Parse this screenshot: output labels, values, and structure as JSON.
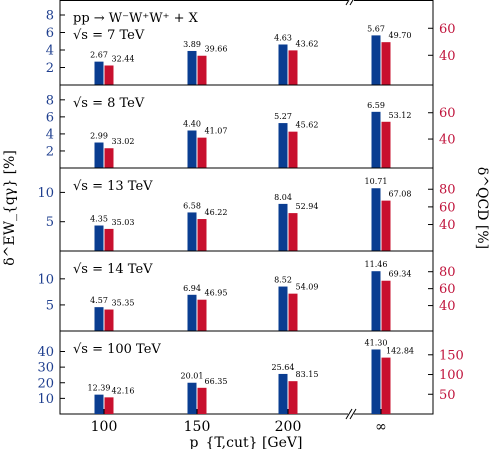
{
  "chart_data": {
    "type": "bar",
    "process": "pp → W⁻W⁺W⁺ + X",
    "categories": [
      "100",
      "150",
      "200",
      "∞"
    ],
    "xlabel": "p_{T,cut} [GeV]",
    "ylabel_left": "δ^EW_{qγ} [%]",
    "ylabel_right": "δ^QCD [%]",
    "panels": [
      {
        "label": "√s = 7 TeV",
        "ew": [
          2.67,
          3.89,
          4.63,
          5.67
        ],
        "qcd": [
          32.44,
          39.66,
          43.62,
          49.7
        ],
        "ew_ylim": [
          0,
          8.8
        ],
        "ew_ticks": [
          2,
          4,
          6,
          8
        ],
        "qcd_ylim": [
          18,
          75
        ],
        "qcd_ticks": [
          40,
          60
        ]
      },
      {
        "label": "√s = 8 TeV",
        "ew": [
          2.99,
          4.4,
          5.27,
          6.59
        ],
        "qcd": [
          33.02,
          41.07,
          45.62,
          53.12
        ],
        "ew_ylim": [
          0,
          8.8
        ],
        "ew_ticks": [
          2,
          4,
          6,
          8
        ],
        "qcd_ylim": [
          18,
          75
        ],
        "qcd_ticks": [
          40,
          60
        ]
      },
      {
        "label": "√s = 13 TeV",
        "ew": [
          4.35,
          6.58,
          8.04,
          10.71
        ],
        "qcd": [
          35.03,
          46.22,
          52.94,
          67.08
        ],
        "ew_ylim": [
          0,
          12.8
        ],
        "ew_ticks": [
          5,
          10
        ],
        "qcd_ylim": [
          10,
          95
        ],
        "qcd_ticks": [
          40,
          60,
          80
        ]
      },
      {
        "label": "√s = 14 TeV",
        "ew": [
          4.57,
          6.94,
          8.52,
          11.46
        ],
        "qcd": [
          35.35,
          46.95,
          54.09,
          69.34
        ],
        "ew_ylim": [
          0,
          13.8
        ],
        "ew_ticks": [
          5,
          10
        ],
        "qcd_ylim": [
          10,
          95
        ],
        "qcd_ticks": [
          40,
          60,
          80
        ]
      },
      {
        "label": "√s = 100 TeV",
        "ew": [
          12.39,
          20.01,
          25.64,
          41.3
        ],
        "qcd": [
          42.16,
          66.35,
          83.15,
          142.84
        ],
        "ew_ylim": [
          0,
          48
        ],
        "ew_ticks": [
          10,
          20,
          30,
          40
        ],
        "qcd_ylim": [
          0,
          190
        ],
        "qcd_ticks": [
          50,
          100,
          150
        ]
      }
    ],
    "series": [
      {
        "name": "EW",
        "color": "#0a3d91"
      },
      {
        "name": "QCD",
        "color": "#c8102e"
      }
    ]
  },
  "colors": {
    "ew": "#0a3d91",
    "qcd": "#c8102e",
    "ew_tick": "#1f3f8f",
    "qcd_tick": "#c0143c"
  }
}
